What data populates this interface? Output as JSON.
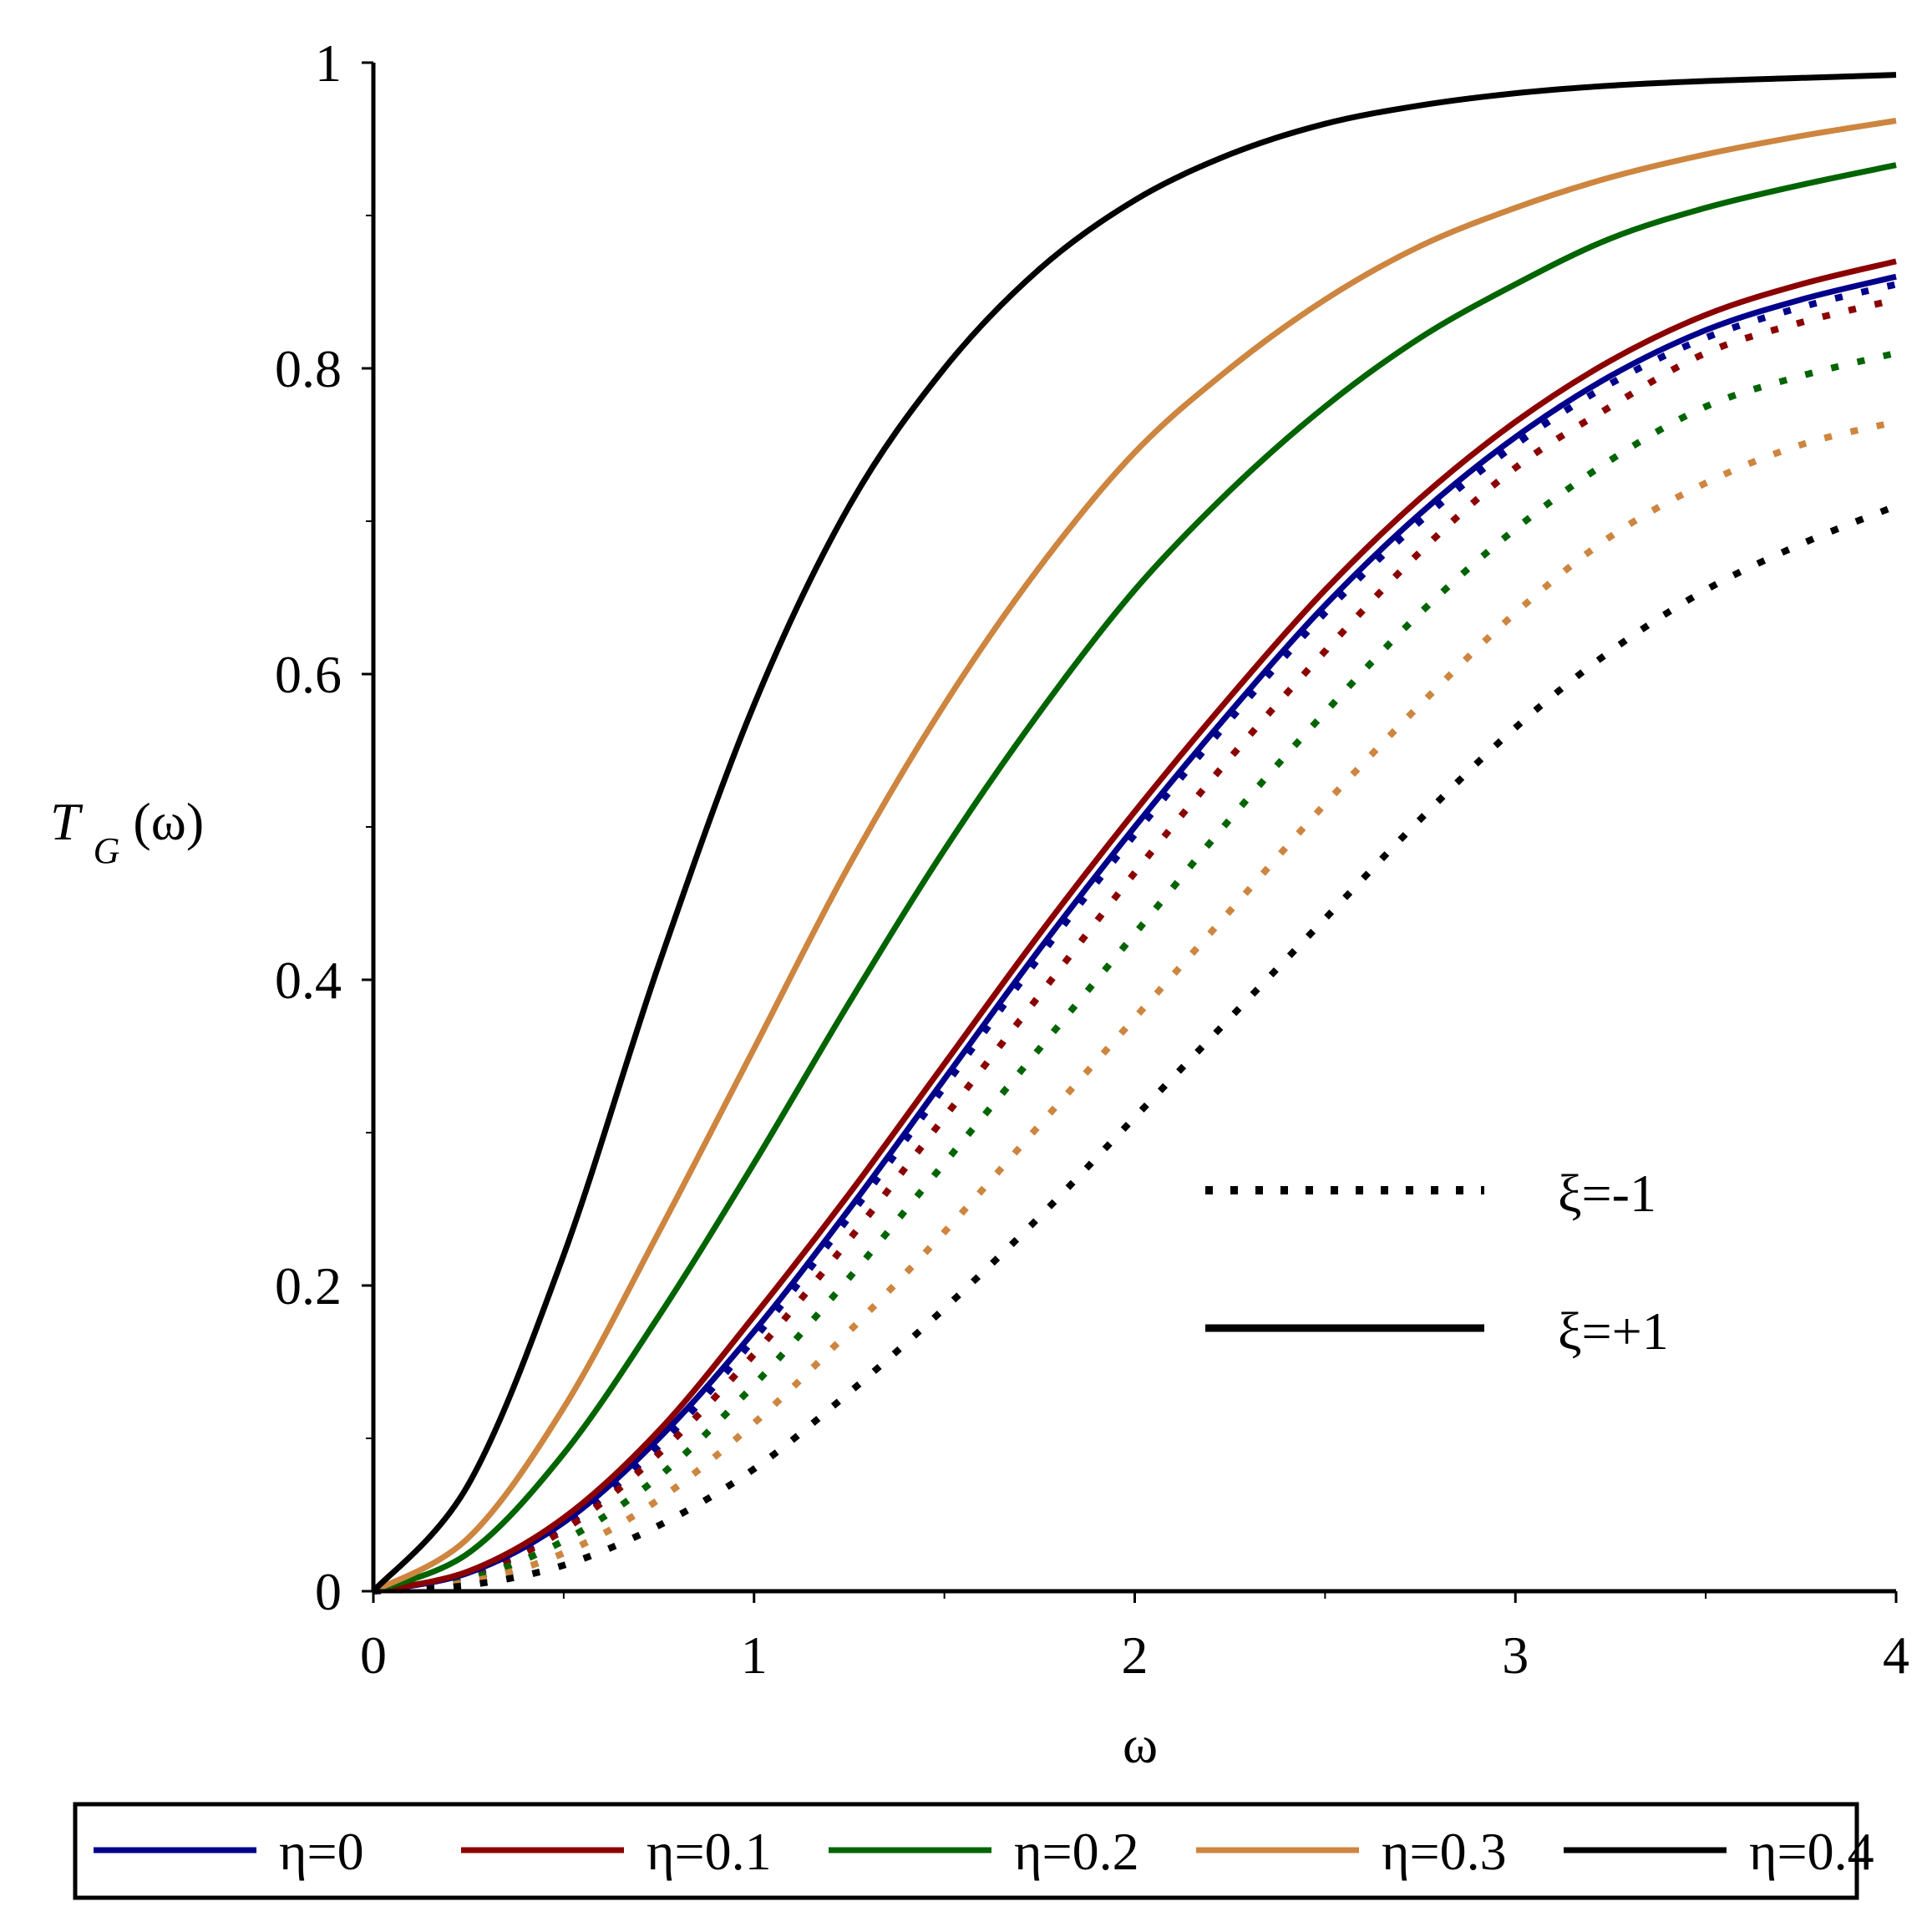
{
  "chart_data": {
    "type": "line",
    "xlabel": "ω",
    "ylabel": {
      "main": "T",
      "sub": "G",
      "arg": "(ω)"
    },
    "xlim": [
      0,
      4
    ],
    "ylim": [
      0,
      1
    ],
    "x_ticks": [
      0,
      1,
      2,
      3,
      4
    ],
    "x_tick_labels": [
      "0",
      "1",
      "2",
      "3",
      "4"
    ],
    "y_ticks": [
      0,
      0.2,
      0.4,
      0.6,
      0.8,
      1
    ],
    "y_tick_labels": [
      "0",
      "0.2",
      "0.4",
      "0.6",
      "0.8",
      "1"
    ],
    "x_minor_ticks": [
      0.5,
      1.5,
      2.5,
      3.5
    ],
    "y_minor_ticks": [
      0.1,
      0.3,
      0.5,
      0.7,
      0.9
    ],
    "x": [
      0,
      0.25,
      0.5,
      0.75,
      1,
      1.25,
      1.5,
      1.75,
      2,
      2.25,
      2.5,
      2.75,
      3,
      3.25,
      3.5,
      3.75,
      4
    ],
    "series": [
      {
        "name": "η=0, ξ=+1",
        "eta": "η=0",
        "xi": "+1",
        "style": "solid",
        "color": "#00008b",
        "values": [
          0,
          0.012,
          0.045,
          0.1,
          0.17,
          0.25,
          0.335,
          0.42,
          0.5,
          0.575,
          0.645,
          0.705,
          0.755,
          0.795,
          0.825,
          0.845,
          0.86
        ]
      },
      {
        "name": "η=0.1, ξ=+1",
        "eta": "η=0.1",
        "xi": "+1",
        "style": "solid",
        "color": "#8b0000",
        "values": [
          0,
          0.013,
          0.048,
          0.105,
          0.18,
          0.26,
          0.345,
          0.43,
          0.51,
          0.585,
          0.655,
          0.715,
          0.765,
          0.805,
          0.835,
          0.855,
          0.87
        ]
      },
      {
        "name": "η=0.2, ξ=+1",
        "eta": "η=0.2",
        "xi": "+1",
        "style": "solid",
        "color": "#006400",
        "values": [
          0,
          0.025,
          0.09,
          0.18,
          0.28,
          0.385,
          0.485,
          0.575,
          0.655,
          0.72,
          0.775,
          0.82,
          0.855,
          0.885,
          0.905,
          0.92,
          0.933
        ]
      },
      {
        "name": "η=0.3, ξ=+1",
        "eta": "η=0.3",
        "xi": "+1",
        "style": "solid",
        "color": "#cd853f",
        "values": [
          0,
          0.035,
          0.12,
          0.235,
          0.355,
          0.475,
          0.58,
          0.67,
          0.745,
          0.8,
          0.845,
          0.88,
          0.905,
          0.925,
          0.94,
          0.952,
          0.962
        ]
      },
      {
        "name": "η=0.4, ξ=+1",
        "eta": "η=0.4",
        "xi": "+1",
        "style": "solid",
        "color": "#000000",
        "values": [
          0,
          0.07,
          0.22,
          0.41,
          0.58,
          0.71,
          0.8,
          0.865,
          0.91,
          0.94,
          0.96,
          0.972,
          0.98,
          0.985,
          0.988,
          0.99,
          0.992
        ]
      },
      {
        "name": "η=0, ξ=-1",
        "eta": "η=0",
        "xi": "-1",
        "style": "dotted",
        "color": "#00008b",
        "values": [
          0,
          0.011,
          0.042,
          0.095,
          0.165,
          0.245,
          0.33,
          0.415,
          0.495,
          0.57,
          0.64,
          0.7,
          0.75,
          0.79,
          0.82,
          0.84,
          0.855
        ]
      },
      {
        "name": "η=0.1, ξ=-1",
        "eta": "η=0.1",
        "xi": "-1",
        "style": "dotted",
        "color": "#8b0000",
        "values": [
          0,
          0.01,
          0.04,
          0.09,
          0.155,
          0.23,
          0.31,
          0.39,
          0.47,
          0.545,
          0.615,
          0.68,
          0.735,
          0.775,
          0.81,
          0.83,
          0.845
        ]
      },
      {
        "name": "η=0.2, ξ=-1",
        "eta": "η=0.2",
        "xi": "-1",
        "style": "dotted",
        "color": "#006400",
        "values": [
          0,
          0.008,
          0.033,
          0.075,
          0.135,
          0.205,
          0.28,
          0.355,
          0.43,
          0.505,
          0.575,
          0.64,
          0.695,
          0.74,
          0.775,
          0.795,
          0.81
        ]
      },
      {
        "name": "η=0.3, ξ=-1",
        "eta": "η=0.3",
        "xi": "-1",
        "style": "dotted",
        "color": "#cd853f",
        "values": [
          0,
          0.006,
          0.025,
          0.06,
          0.11,
          0.17,
          0.235,
          0.305,
          0.375,
          0.445,
          0.515,
          0.58,
          0.64,
          0.69,
          0.725,
          0.75,
          0.765
        ]
      },
      {
        "name": "η=0.4, ξ=-1",
        "eta": "η=0.4",
        "xi": "-1",
        "style": "dotted",
        "color": "#000000",
        "values": [
          0,
          0.004,
          0.017,
          0.043,
          0.08,
          0.13,
          0.185,
          0.245,
          0.31,
          0.375,
          0.44,
          0.505,
          0.565,
          0.615,
          0.655,
          0.685,
          0.71
        ]
      }
    ],
    "style_legend": [
      {
        "label": "ξ=-1",
        "style": "dotted"
      },
      {
        "label": "ξ=+1",
        "style": "solid"
      }
    ],
    "color_legend": [
      {
        "label": "η=0",
        "color": "#00008b"
      },
      {
        "label": "η=0.1",
        "color": "#8b0000"
      },
      {
        "label": "η=0.2",
        "color": "#006400"
      },
      {
        "label": "η=0.3",
        "color": "#cd853f"
      },
      {
        "label": "η=0.4",
        "color": "#000000"
      }
    ],
    "color_legend_position": "bottom",
    "style_legend_position": "lower-right"
  }
}
